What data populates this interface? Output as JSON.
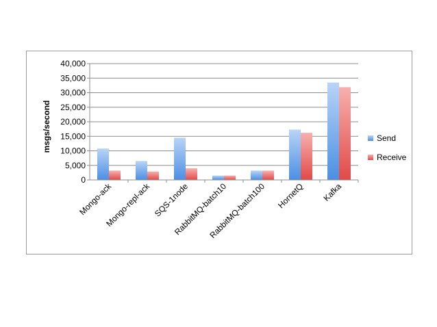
{
  "chart_data": {
    "type": "bar",
    "categories": [
      "Mongo-ack",
      "Mongo-repl-ack",
      "SQS-1node",
      "RabbitMQ-batch10",
      "RabbitMQ-batch100",
      "HornetQ",
      "Kafka"
    ],
    "series": [
      {
        "name": "Send",
        "values": [
          10800,
          6500,
          14500,
          1500,
          3200,
          17300,
          33500
        ],
        "color": "#6fa8ea"
      },
      {
        "name": "Receive",
        "values": [
          3200,
          2900,
          4000,
          1500,
          3200,
          16200,
          31900
        ],
        "color": "#ee6666"
      }
    ],
    "ylabel": "msgs/second",
    "ylim": [
      0,
      40000
    ],
    "yticks": [
      "0",
      "5,000",
      "10,000",
      "15,000",
      "20,000",
      "25,000",
      "30,000",
      "35,000",
      "40,000"
    ],
    "grid": true,
    "legend": "right"
  }
}
